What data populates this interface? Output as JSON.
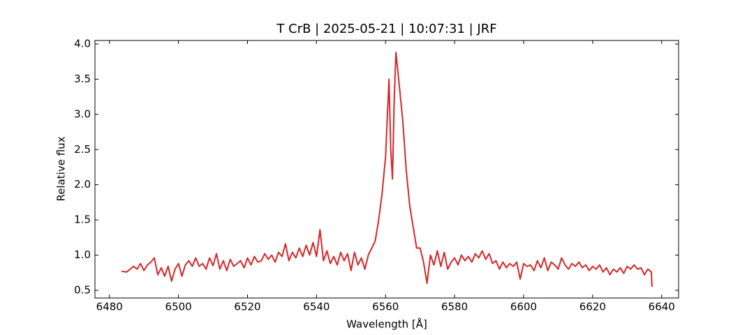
{
  "chart_data": {
    "type": "line",
    "title": "T CrB | 2025-05-21 | 10:07:31 | JRF",
    "xlabel": "Wavelength [Å]",
    "ylabel": "Relative flux",
    "color": "#d62728",
    "xlim": [
      6475.8,
      6644.9
    ],
    "ylim": [
      0.39,
      4.05
    ],
    "xticks": [
      6480,
      6500,
      6520,
      6540,
      6560,
      6580,
      6600,
      6620,
      6640
    ],
    "yticks": [
      {
        "value": 0.5,
        "label": "0.5"
      },
      {
        "value": 1,
        "label": "1.0"
      },
      {
        "value": 1.5,
        "label": "1.5"
      },
      {
        "value": 2,
        "label": "2.0"
      },
      {
        "value": 2.5,
        "label": "2.5"
      },
      {
        "value": 3,
        "label": "3.0"
      },
      {
        "value": 3.5,
        "label": "3.5"
      },
      {
        "value": 4,
        "label": "4.0"
      }
    ],
    "x": [
      6483.5,
      6485,
      6486,
      6487,
      6488,
      6489,
      6490,
      6491,
      6492,
      6493,
      6494,
      6495,
      6496,
      6497,
      6498,
      6499,
      6500,
      6501,
      6502,
      6503,
      6504,
      6505,
      6506,
      6507,
      6508,
      6509,
      6510,
      6511,
      6512,
      6513,
      6514,
      6515,
      6516,
      6517,
      6518,
      6519,
      6520,
      6521,
      6522,
      6523,
      6524,
      6525,
      6526,
      6527,
      6528,
      6529,
      6530,
      6531,
      6532,
      6533,
      6534,
      6535,
      6536,
      6537,
      6538,
      6539,
      6540,
      6541,
      6542,
      6543,
      6544,
      6545,
      6546,
      6547,
      6548,
      6549,
      6550,
      6551,
      6552,
      6553,
      6554,
      6555,
      6556,
      6557,
      6558,
      6559,
      6560,
      6561,
      6561.5,
      6562,
      6562.5,
      6563,
      6564,
      6565,
      6566,
      6567,
      6568,
      6569,
      6570,
      6571,
      6572,
      6573,
      6574,
      6575,
      6576,
      6577,
      6578,
      6579,
      6580,
      6581,
      6582,
      6583,
      6584,
      6585,
      6586,
      6587,
      6588,
      6589,
      6590,
      6591,
      6592,
      6593,
      6594,
      6595,
      6596,
      6597,
      6598,
      6599,
      6600,
      6601,
      6602,
      6603,
      6604,
      6605,
      6606,
      6607,
      6608,
      6609,
      6610,
      6611,
      6612,
      6613,
      6614,
      6615,
      6616,
      6617,
      6618,
      6619,
      6620,
      6621,
      6622,
      6623,
      6624,
      6625,
      6626,
      6627,
      6628,
      6629,
      6630,
      6631,
      6632,
      6633,
      6634,
      6635,
      6636,
      6637,
      6637.2
    ],
    "values": [
      0.77,
      0.76,
      0.8,
      0.84,
      0.8,
      0.88,
      0.78,
      0.86,
      0.9,
      0.96,
      0.72,
      0.82,
      0.7,
      0.84,
      0.63,
      0.8,
      0.88,
      0.7,
      0.86,
      0.92,
      0.84,
      0.96,
      0.84,
      0.88,
      0.8,
      0.96,
      0.85,
      1.02,
      0.8,
      0.92,
      0.78,
      0.94,
      0.84,
      0.88,
      0.92,
      0.82,
      0.96,
      0.86,
      0.98,
      0.9,
      0.92,
      1.02,
      0.94,
      1.0,
      0.9,
      1.04,
      0.98,
      1.16,
      0.92,
      1.04,
      0.96,
      1.1,
      0.98,
      1.14,
      1.0,
      1.18,
      0.98,
      1.36,
      0.92,
      1.06,
      0.88,
      0.98,
      0.86,
      1.04,
      0.92,
      1.02,
      0.78,
      1.04,
      0.86,
      0.96,
      0.8,
      1.0,
      1.1,
      1.2,
      1.5,
      1.88,
      2.4,
      3.5,
      2.5,
      2.08,
      3.2,
      3.88,
      3.4,
      2.9,
      2.2,
      1.7,
      1.4,
      1.1,
      1.1,
      0.9,
      0.6,
      1.0,
      0.86,
      1.06,
      0.84,
      1.04,
      0.8,
      0.9,
      0.96,
      0.86,
      1.0,
      0.92,
      0.98,
      0.9,
      1.02,
      0.96,
      1.06,
      0.94,
      1.02,
      0.88,
      0.92,
      0.8,
      0.9,
      0.82,
      0.88,
      0.84,
      0.9,
      0.66,
      0.88,
      0.84,
      0.86,
      0.78,
      0.92,
      0.82,
      0.96,
      0.78,
      0.9,
      0.86,
      0.8,
      0.96,
      0.86,
      0.8,
      0.88,
      0.84,
      0.9,
      0.82,
      0.86,
      0.78,
      0.84,
      0.8,
      0.86,
      0.76,
      0.82,
      0.72,
      0.8,
      0.76,
      0.82,
      0.74,
      0.84,
      0.8,
      0.86,
      0.8,
      0.82,
      0.72,
      0.8,
      0.76,
      0.55
    ]
  }
}
